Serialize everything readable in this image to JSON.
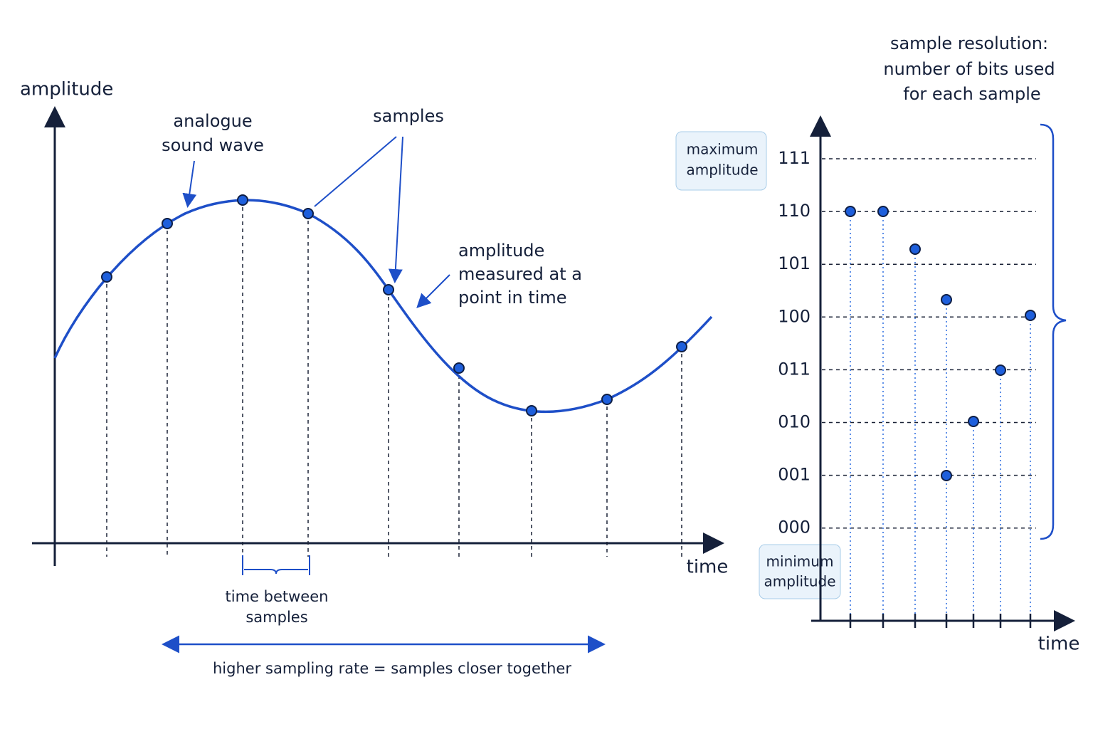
{
  "left": {
    "axis_y": "amplitude",
    "axis_x": "time",
    "wave_label": [
      "analogue",
      "sound wave"
    ],
    "samples_label": "samples",
    "measure_label": [
      "amplitude",
      "measured at a",
      "point in time"
    ],
    "interval_label": [
      "time between",
      "samples"
    ],
    "rate_note": "higher sampling rate = samples closer together"
  },
  "right": {
    "title": [
      "sample resolution:",
      "number of bits used",
      "for each sample"
    ],
    "levels": [
      "111",
      "110",
      "101",
      "100",
      "011",
      "010",
      "001",
      "000"
    ],
    "max_label": [
      "maximum",
      "amplitude"
    ],
    "min_label": [
      "minimum",
      "amplitude"
    ],
    "axis_x": "time"
  }
}
